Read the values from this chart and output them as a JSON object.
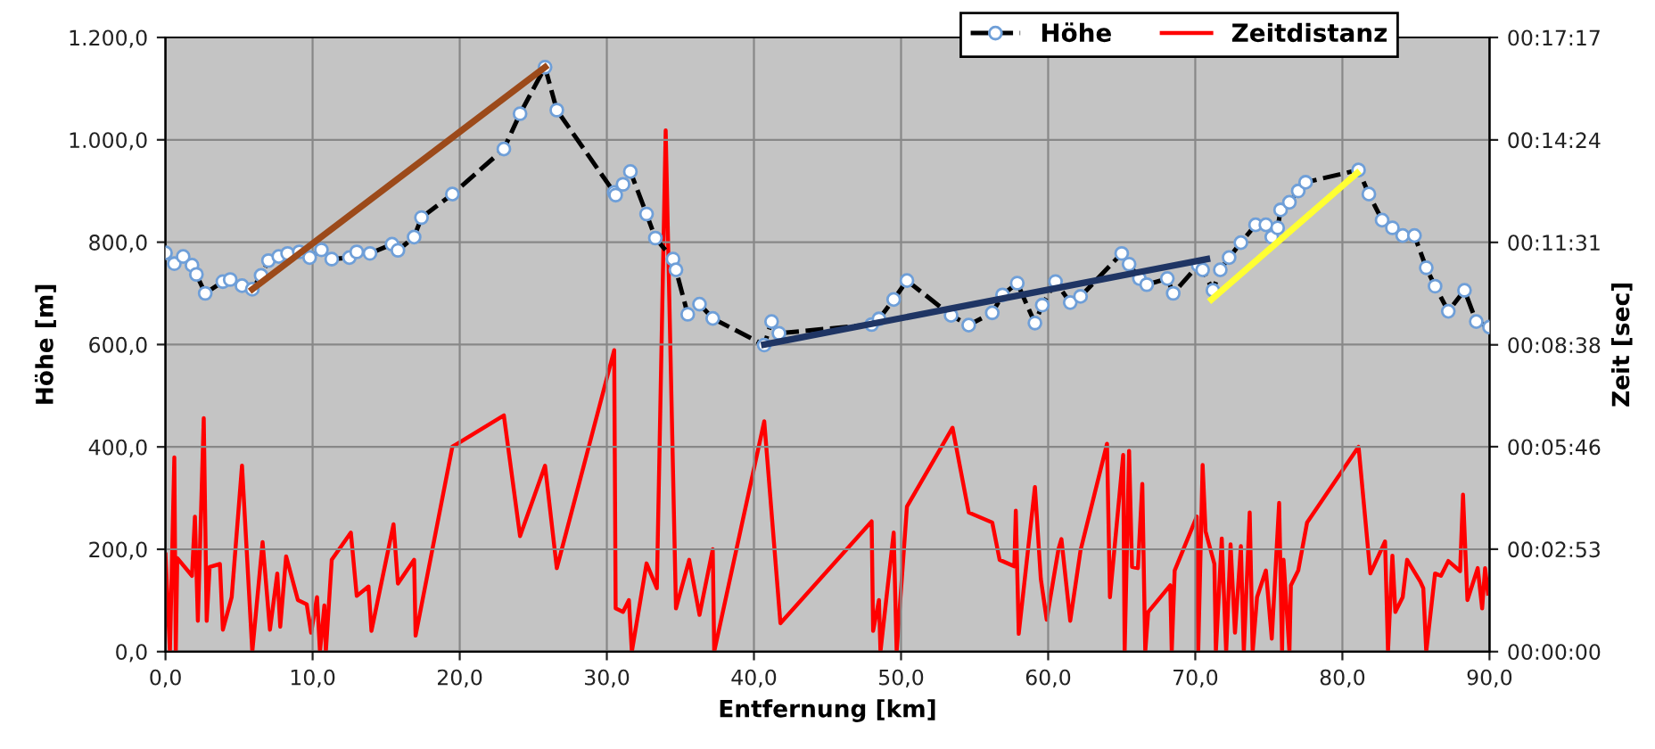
{
  "chart_data": {
    "type": "line",
    "xlabel": "Entfernung [km]",
    "ylabel": "Höhe [m]",
    "y2label": "Zeit [sec]",
    "xlim": [
      0,
      90
    ],
    "xticks": [
      {
        "value": 0,
        "label": "0,0"
      },
      {
        "value": 10,
        "label": "10,0"
      },
      {
        "value": 20,
        "label": "20,0"
      },
      {
        "value": 30,
        "label": "30,0"
      },
      {
        "value": 40,
        "label": "40,0"
      },
      {
        "value": 50,
        "label": "50,0"
      },
      {
        "value": 60,
        "label": "60,0"
      },
      {
        "value": 70,
        "label": "70,0"
      },
      {
        "value": 80,
        "label": "80,0"
      },
      {
        "value": 90,
        "label": "90,0"
      }
    ],
    "ylim": [
      0,
      1200
    ],
    "yticks": [
      {
        "value": 0,
        "label": "0,0"
      },
      {
        "value": 200,
        "label": "200,0"
      },
      {
        "value": 400,
        "label": "400,0"
      },
      {
        "value": 600,
        "label": "600,0"
      },
      {
        "value": 800,
        "label": "800,0"
      },
      {
        "value": 1000,
        "label": "1.000,0"
      },
      {
        "value": 1200,
        "label": "1.200,0"
      }
    ],
    "y2lim": [
      0,
      1037
    ],
    "y2ticks": [
      {
        "value": 0,
        "label": "00:00:00"
      },
      {
        "value": 173,
        "label": "00:02:53"
      },
      {
        "value": 346,
        "label": "00:05:46"
      },
      {
        "value": 518,
        "label": "00:08:38"
      },
      {
        "value": 691,
        "label": "00:11:31"
      },
      {
        "value": 864,
        "label": "00:14:24"
      },
      {
        "value": 1037,
        "label": "00:17:17"
      }
    ],
    "grid": true,
    "legend": "top right",
    "series": [
      {
        "name": "Zeitdistanz",
        "color": "#ff0000",
        "axis": "y2",
        "marker": "none",
        "x": [
          0.0,
          0.3,
          0.6,
          0.7,
          0.8,
          1.8,
          2.0,
          2.2,
          2.6,
          2.8,
          3.0,
          3.7,
          3.9,
          4.5,
          5.2,
          5.9,
          6.6,
          7.1,
          7.6,
          7.8,
          8.2,
          9.0,
          9.6,
          9.9,
          10.3,
          10.5,
          10.8,
          10.9,
          11.3,
          12.6,
          13.0,
          13.8,
          14.0,
          15.5,
          15.8,
          16.9,
          17.0,
          19.5,
          23.0,
          24.1,
          25.8,
          26.6,
          30.5,
          30.6,
          31.1,
          31.5,
          31.7,
          32.7,
          33.4,
          34.0,
          34.7,
          35.6,
          36.3,
          37.2,
          37.3,
          40.7,
          41.8,
          48.0,
          48.1,
          48.5,
          48.6,
          49.5,
          49.7,
          50.4,
          53.5,
          54.6,
          56.2,
          56.7,
          57.7,
          57.8,
          58.0,
          59.1,
          59.5,
          59.9,
          60.7,
          60.9,
          61.5,
          62.2,
          64.0,
          64.2,
          65.1,
          65.2,
          65.5,
          65.7,
          66.1,
          66.4,
          66.6,
          66.8,
          68.3,
          68.4,
          68.6,
          70.1,
          70.2,
          70.5,
          70.7,
          71.3,
          71.4,
          71.8,
          72.1,
          72.4,
          72.7,
          73.1,
          73.3,
          73.7,
          73.9,
          74.2,
          74.8,
          75.2,
          75.7,
          75.9,
          76.0,
          76.4,
          76.5,
          77.0,
          77.6,
          81.1,
          81.9,
          82.9,
          83.1,
          83.4,
          83.6,
          84.1,
          84.4,
          85.3,
          85.5,
          85.7,
          86.3,
          86.7,
          87.2,
          88.0,
          88.2,
          88.5,
          89.2,
          89.5,
          89.7,
          89.9
        ],
        "values": [
          164,
          0,
          328,
          0,
          158,
          128,
          228,
          52,
          394,
          52,
          143,
          148,
          37,
          92,
          314,
          0,
          185,
          37,
          132,
          42,
          161,
          87,
          80,
          32,
          92,
          0,
          78,
          0,
          155,
          201,
          94,
          110,
          35,
          215,
          115,
          155,
          27,
          346,
          399,
          195,
          314,
          141,
          509,
          73,
          67,
          87,
          0,
          149,
          107,
          880,
          73,
          155,
          62,
          173,
          0,
          389,
          48,
          220,
          35,
          87,
          0,
          201,
          0,
          245,
          378,
          235,
          218,
          155,
          144,
          238,
          30,
          278,
          123,
          54,
          173,
          190,
          52,
          171,
          351,
          92,
          332,
          0,
          339,
          143,
          141,
          283,
          0,
          67,
          112,
          0,
          137,
          228,
          0,
          315,
          203,
          148,
          0,
          191,
          0,
          181,
          32,
          178,
          0,
          235,
          0,
          92,
          137,
          22,
          251,
          0,
          155,
          0,
          112,
          137,
          218,
          346,
          132,
          186,
          0,
          162,
          67,
          92,
          155,
          118,
          107,
          0,
          132,
          128,
          153,
          136,
          265,
          87,
          141,
          73,
          141,
          98
        ]
      },
      {
        "name": "Höhe",
        "color": "#000000",
        "marker": "circle",
        "line_style": "dashed",
        "x": [
          0.0,
          0.6,
          1.2,
          1.8,
          2.1,
          2.7,
          3.9,
          4.4,
          5.2,
          5.9,
          6.5,
          7.0,
          7.7,
          8.3,
          9.1,
          9.8,
          10.6,
          11.3,
          12.5,
          13.0,
          13.9,
          15.4,
          15.8,
          16.9,
          17.4,
          19.5,
          23.0,
          24.1,
          25.8,
          26.6,
          30.5,
          30.6,
          31.1,
          31.6,
          32.7,
          33.3,
          34.5,
          34.7,
          35.5,
          36.3,
          37.2,
          40.7,
          41.2,
          41.7,
          48.0,
          48.5,
          49.5,
          50.4,
          53.4,
          54.6,
          56.2,
          56.9,
          57.9,
          59.1,
          59.6,
          60.5,
          61.5,
          62.2,
          65.0,
          65.5,
          66.2,
          66.7,
          68.1,
          68.5,
          70.2,
          70.5,
          71.2,
          71.7,
          72.3,
          73.1,
          74.1,
          74.8,
          75.2,
          75.6,
          75.8,
          76.4,
          77.0,
          77.5,
          81.1,
          81.8,
          82.7,
          83.4,
          84.1,
          84.9,
          85.7,
          86.3,
          87.2,
          88.3,
          89.1,
          90.0
        ],
        "values": [
          779,
          758,
          772,
          755,
          737,
          700,
          723,
          727,
          715,
          708,
          735,
          764,
          772,
          778,
          781,
          770,
          785,
          767,
          770,
          781,
          778,
          796,
          784,
          810,
          848,
          894,
          982,
          1051,
          1142,
          1058,
          897,
          892,
          913,
          938,
          855,
          808,
          767,
          746,
          659,
          679,
          651,
          599,
          645,
          622,
          639,
          650,
          688,
          725,
          657,
          638,
          662,
          697,
          720,
          642,
          677,
          723,
          682,
          694,
          778,
          757,
          729,
          717,
          729,
          700,
          755,
          746,
          706,
          746,
          770,
          799,
          834,
          834,
          810,
          828,
          863,
          878,
          900,
          917,
          941,
          894,
          843,
          828,
          813,
          813,
          750,
          714,
          665,
          706,
          645,
          634
        ]
      },
      {
        "type": "line",
        "color": "#9c4a1a",
        "marker": "none",
        "x": [
          5.9,
          25.8
        ],
        "values": [
          708,
          1142
        ]
      },
      {
        "type": "line",
        "color": "#1f3564",
        "marker": "none",
        "x": [
          40.7,
          70.8
        ],
        "values": [
          600,
          767
        ]
      },
      {
        "type": "line",
        "color": "#ffff33",
        "marker": "none",
        "x": [
          71.1,
          81.0
        ],
        "values": [
          688,
          935
        ]
      }
    ]
  }
}
